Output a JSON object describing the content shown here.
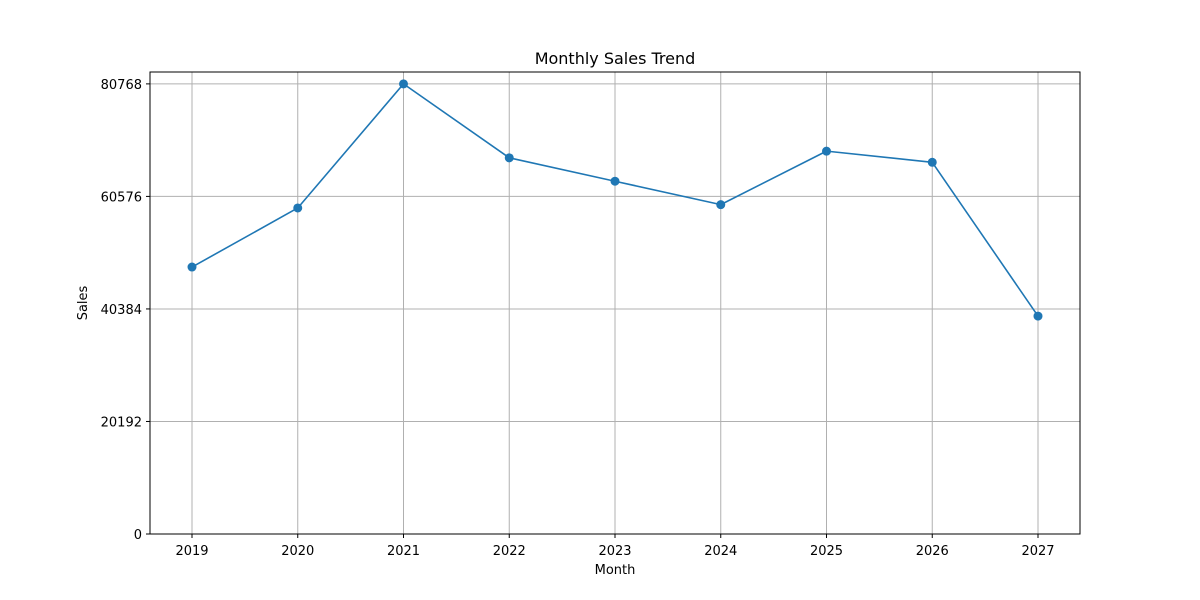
{
  "chart_data": {
    "type": "line",
    "title": "Monthly Sales Trend",
    "xlabel": "Month",
    "ylabel": "Sales",
    "x": [
      "2019",
      "2020",
      "2021",
      "2022",
      "2023",
      "2024",
      "2025",
      "2026",
      "2027"
    ],
    "y_ticks": [
      0,
      20192,
      40384,
      60576,
      80768
    ],
    "ylim": [
      0,
      82900
    ],
    "grid": true,
    "series": [
      {
        "values": [
          47900,
          58500,
          80768,
          67500,
          63300,
          59100,
          68700,
          66700,
          39100
        ],
        "color": "#1f77b4",
        "marker": "circle"
      }
    ]
  }
}
